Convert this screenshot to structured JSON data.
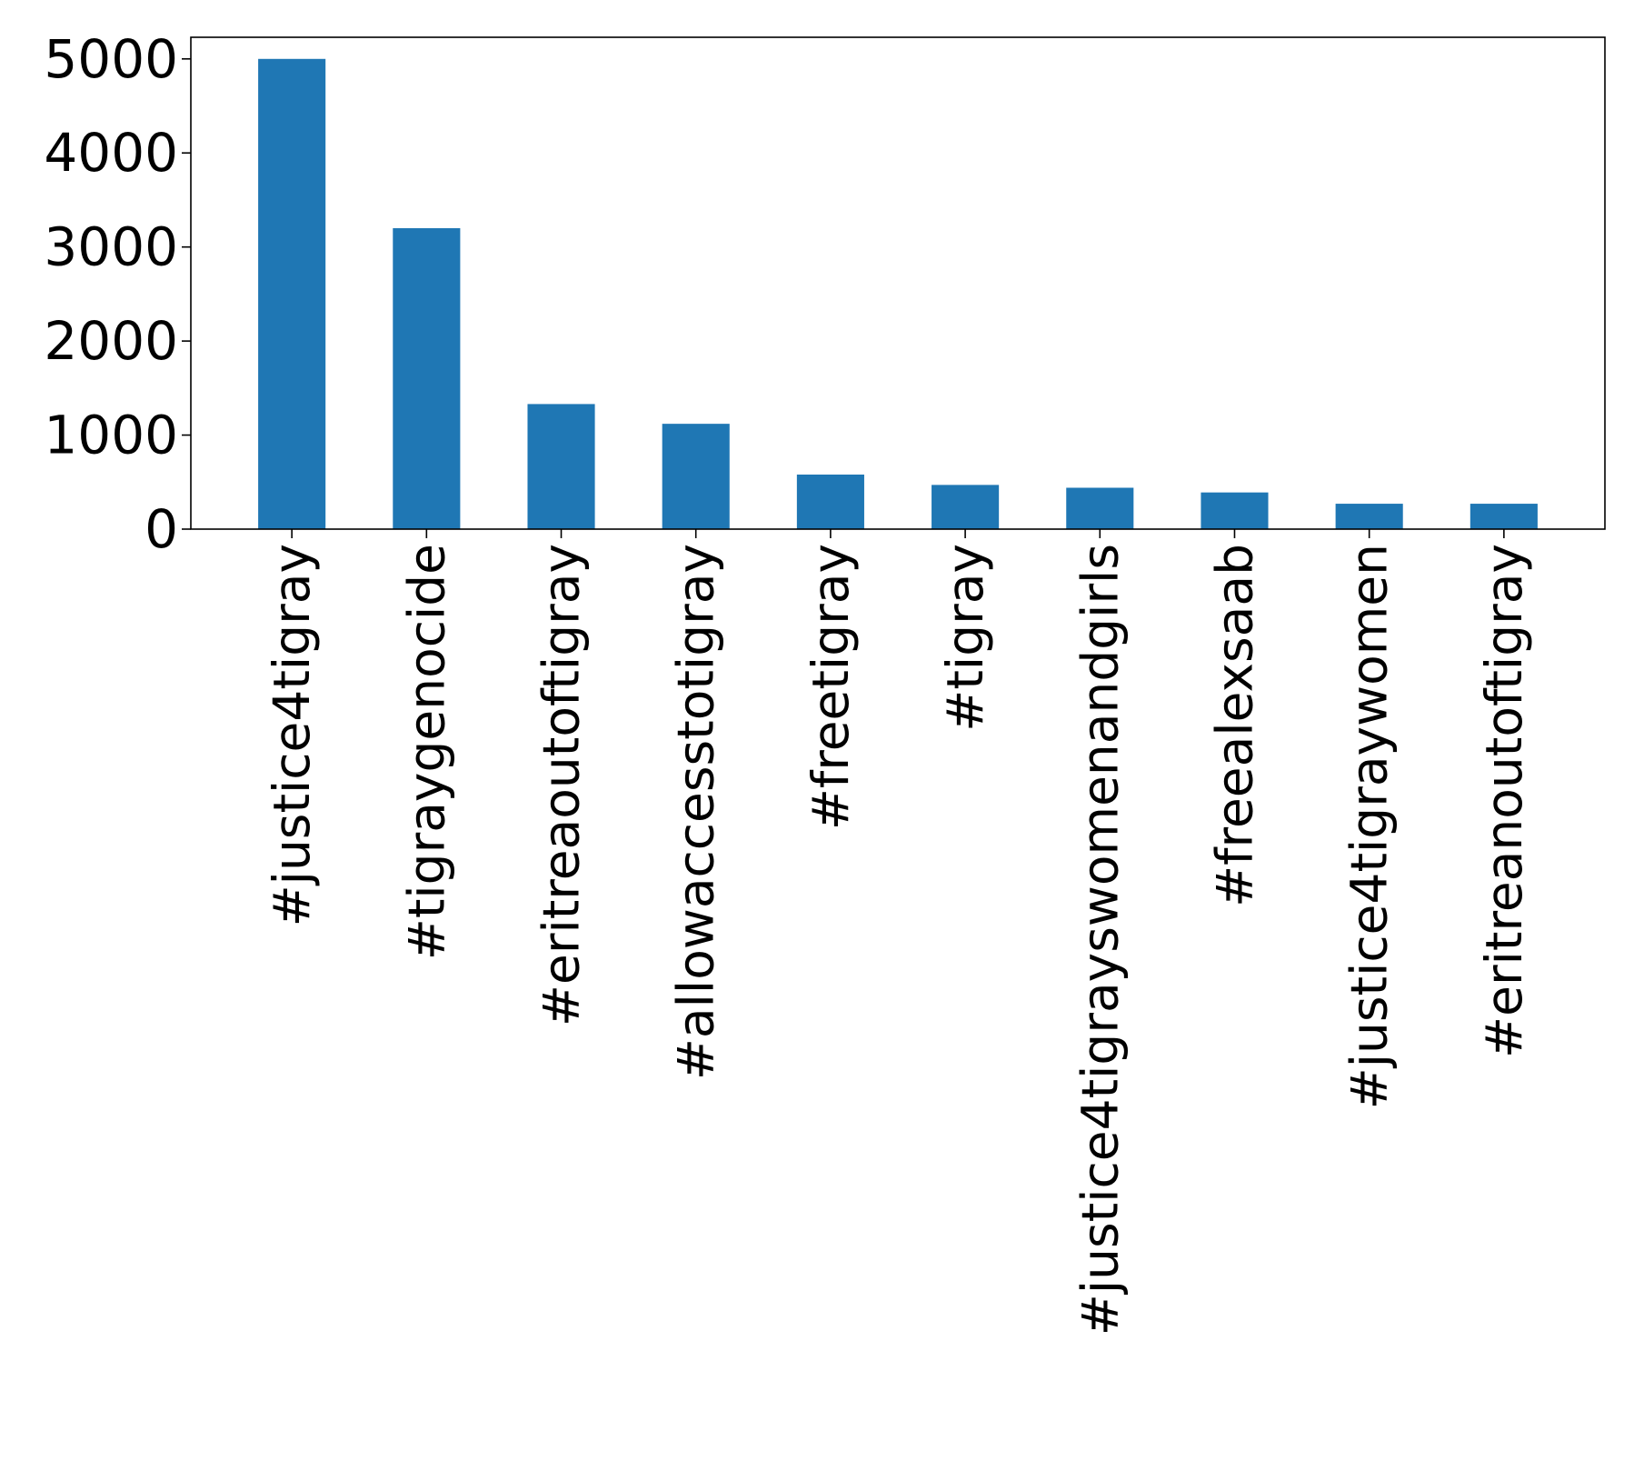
{
  "chart_data": {
    "type": "bar",
    "title": "",
    "xlabel": "",
    "ylabel": "",
    "categories": [
      "#justice4tigray",
      "#tigraygenocide",
      "#eritreaoutoftigray",
      "#allowaccesstotigray",
      "#freetigray",
      "#tigray",
      "#justice4tigrayswomenandgirls",
      "#freealexsaab",
      "#justice4tigraywomen",
      "#eritreanoutoftigray"
    ],
    "values": [
      5000,
      3200,
      1330,
      1120,
      580,
      470,
      440,
      390,
      270,
      270
    ],
    "ylim": [
      0,
      5230
    ],
    "yticks": [
      0,
      1000,
      2000,
      3000,
      4000,
      5000
    ],
    "grid": false,
    "legend": "none",
    "colors": {
      "bar": "#1f77b4",
      "axis": "#000000",
      "background": "#ffffff"
    }
  }
}
